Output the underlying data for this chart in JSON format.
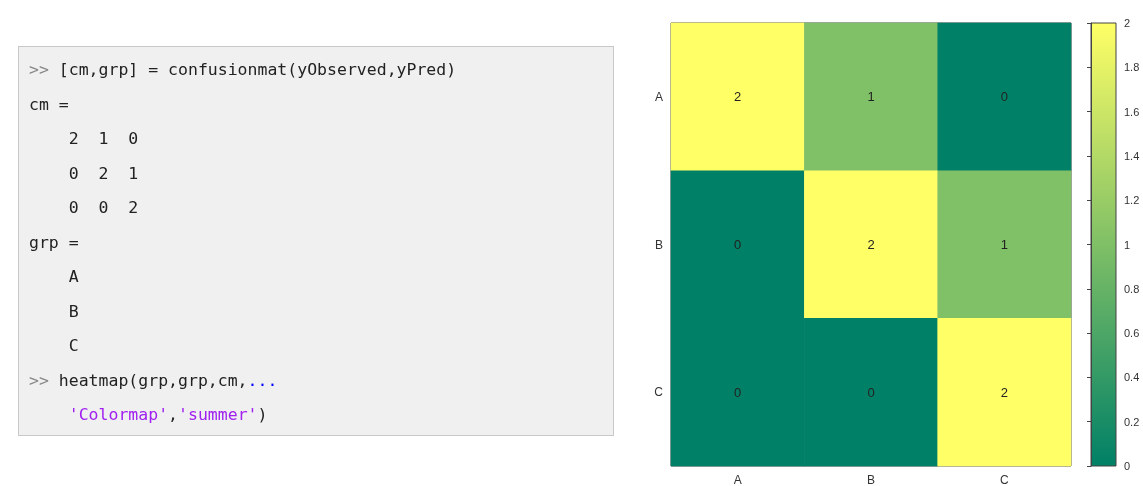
{
  "chart_data": [
    {
      "type": "other",
      "annotations": [
        ">> [cm,grp] = confusionmat(yObserved,yPred)",
        "cm =",
        "    2  1  0",
        "    0  2  1",
        "    0  0  2",
        "grp =",
        "    A",
        "    B",
        "    C",
        ">> heatmap(grp,grp,cm,...",
        "    'Colormap','summer')"
      ]
    },
    {
      "type": "heatmap",
      "categories": [
        "A",
        "B",
        "C"
      ],
      "y_categories": [
        "A",
        "B",
        "C"
      ],
      "cells": [
        [
          2,
          1,
          0
        ],
        [
          0,
          2,
          1
        ],
        [
          0,
          0,
          2
        ]
      ],
      "data_labels": true,
      "clim": [
        0,
        2
      ],
      "cticks": [
        0,
        0.2,
        0.4,
        0.6,
        0.8,
        1,
        1.2,
        1.4,
        1.6,
        1.8,
        2
      ]
    }
  ]
}
